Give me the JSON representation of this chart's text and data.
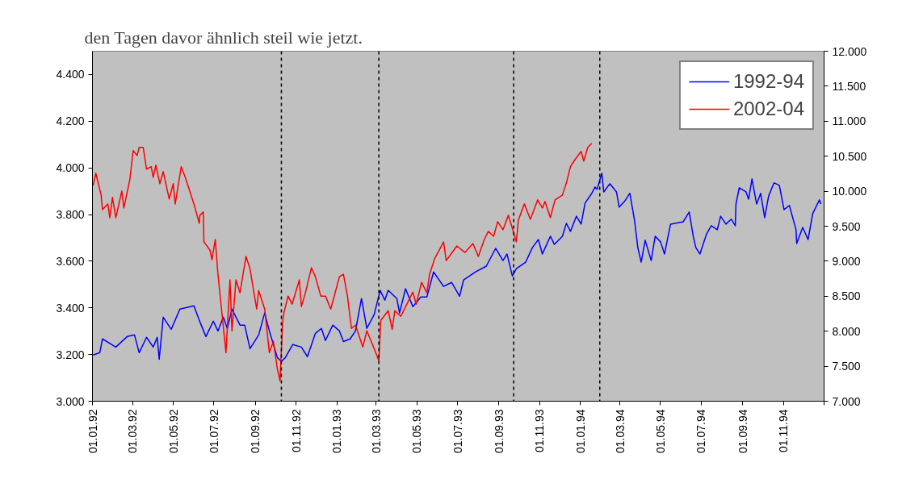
{
  "chart_data": {
    "type": "line",
    "annotations": [
      "den Tagen davor ähnlich steil wie jetzt."
    ],
    "xlim": [
      "1992-01-01",
      "1995-01-01"
    ],
    "xticks": [
      {
        "value": "1992-01-01",
        "label": "01.01.92"
      },
      {
        "value": "1992-03-01",
        "label": "01.03.92"
      },
      {
        "value": "1992-05-01",
        "label": "01.05.92"
      },
      {
        "value": "1992-07-01",
        "label": "01.07.92"
      },
      {
        "value": "1992-09-01",
        "label": "01.09.92"
      },
      {
        "value": "1992-11-01",
        "label": "01.11.92"
      },
      {
        "value": "1993-01-01",
        "label": "01.01.93"
      },
      {
        "value": "1993-03-01",
        "label": "01.03.93"
      },
      {
        "value": "1993-05-01",
        "label": "01.05.93"
      },
      {
        "value": "1993-07-01",
        "label": "01.07.93"
      },
      {
        "value": "1993-09-01",
        "label": "01.09.93"
      },
      {
        "value": "1993-11-01",
        "label": "01.11.93"
      },
      {
        "value": "1994-01-01",
        "label": "01.01.94"
      },
      {
        "value": "1994-03-01",
        "label": "01.03.94"
      },
      {
        "value": "1994-05-01",
        "label": "01.05.94"
      },
      {
        "value": "1994-07-01",
        "label": "01.07.94"
      },
      {
        "value": "1994-09-01",
        "label": "01.09.94"
      },
      {
        "value": "1994-11-01",
        "label": "01.11.94"
      },
      {
        "value": "1995-01-01",
        "label": null
      }
    ],
    "ylim": [
      3000,
      4500
    ],
    "yticks": [
      {
        "value": 3000,
        "label": "3.000"
      },
      {
        "value": 3200,
        "label": "3.200"
      },
      {
        "value": 3400,
        "label": "3.400"
      },
      {
        "value": 3600,
        "label": "3.600"
      },
      {
        "value": 3800,
        "label": "3.800"
      },
      {
        "value": 4000,
        "label": "4.000"
      },
      {
        "value": 4200,
        "label": "4.200"
      },
      {
        "value": 4400,
        "label": "4.400"
      }
    ],
    "y2lim": [
      7000,
      12000
    ],
    "y2ticks": [
      {
        "value": 7000,
        "label": "7.000"
      },
      {
        "value": 7500,
        "label": "7.500"
      },
      {
        "value": 8000,
        "label": "8.000"
      },
      {
        "value": 8500,
        "label": "8.500"
      },
      {
        "value": 9000,
        "label": "9.000"
      },
      {
        "value": 9500,
        "label": "9.500"
      },
      {
        "value": 10000,
        "label": "10.000"
      },
      {
        "value": 10500,
        "label": "10.500"
      },
      {
        "value": 11000,
        "label": "11.000"
      },
      {
        "value": 11500,
        "label": "11.500"
      },
      {
        "value": 12000,
        "label": "12.000"
      }
    ],
    "grid": false,
    "legend": "top right",
    "ref_lines": [
      {
        "axis": "x",
        "value": "1992-10-10",
        "label": null,
        "color": "#000000",
        "line_style": "dashed"
      },
      {
        "axis": "x",
        "value": "1993-03-05",
        "label": null,
        "color": "#000000",
        "line_style": "dashed"
      },
      {
        "axis": "x",
        "value": "1993-09-23",
        "label": null,
        "color": "#000000",
        "line_style": "dashed"
      },
      {
        "axis": "x",
        "value": "1994-01-30",
        "label": null,
        "color": "#000000",
        "line_style": "dashed"
      }
    ],
    "series": [
      {
        "name": "1992-94",
        "color": "#0000ff",
        "x": [
          "1992-01-02",
          "1992-01-12",
          "1992-01-16",
          "1992-02-05",
          "1992-02-22",
          "1992-03-04",
          "1992-03-11",
          "1992-03-22",
          "1992-04-01",
          "1992-04-07",
          "1992-04-10",
          "1992-04-16",
          "1992-04-28",
          "1992-05-11",
          "1992-06-01",
          "1992-06-09",
          "1992-06-19",
          "1992-06-30",
          "1992-07-07",
          "1992-07-15",
          "1992-07-21",
          "1992-07-28",
          "1992-08-09",
          "1992-08-16",
          "1992-08-24",
          "1992-09-06",
          "1992-09-15",
          "1992-09-22",
          "1992-10-04",
          "1992-10-10",
          "1992-10-16",
          "1992-10-27",
          "1992-11-09",
          "1992-11-18",
          "1992-11-30",
          "1992-12-09",
          "1992-12-15",
          "1992-12-26",
          "1993-01-05",
          "1993-01-11",
          "1993-01-21",
          "1993-01-29",
          "1993-02-07",
          "1993-02-15",
          "1993-02-26",
          "1993-03-07",
          "1993-03-14",
          "1993-03-19",
          "1993-04-01",
          "1993-04-05",
          "1993-04-14",
          "1993-04-25",
          "1993-05-07",
          "1993-05-16",
          "1993-05-26",
          "1993-06-10",
          "1993-06-22",
          "1993-07-04",
          "1993-07-10",
          "1993-07-28",
          "1993-08-13",
          "1993-08-27",
          "1993-09-07",
          "1993-09-13",
          "1993-09-21",
          "1993-09-27",
          "1993-10-11",
          "1993-10-21",
          "1993-10-30",
          "1993-11-05",
          "1993-11-17",
          "1993-11-23",
          "1993-12-05",
          "1993-12-11",
          "1993-12-17",
          "1993-12-26",
          "1994-01-02",
          "1994-01-08",
          "1994-01-18",
          "1994-01-23",
          "1994-01-26",
          "1994-02-02",
          "1994-02-05",
          "1994-02-14",
          "1994-02-24",
          "1994-02-28",
          "1994-03-08",
          "1994-03-16",
          "1994-03-23",
          "1994-03-28",
          "1994-04-02",
          "1994-04-08",
          "1994-04-17",
          "1994-04-23",
          "1994-05-01",
          "1994-05-07",
          "1994-05-16",
          "1994-06-04",
          "1994-06-13",
          "1994-06-19",
          "1994-06-23",
          "1994-06-29",
          "1994-07-09",
          "1994-07-16",
          "1994-07-25",
          "1994-07-30",
          "1994-08-07",
          "1994-08-15",
          "1994-08-21",
          "1994-08-22",
          "1994-08-27",
          "1994-09-06",
          "1994-09-10",
          "1994-09-15",
          "1994-09-22",
          "1994-09-28",
          "1994-10-04",
          "1994-10-10",
          "1994-10-18",
          "1994-10-26",
          "1994-11-02",
          "1994-11-10",
          "1994-11-20",
          "1994-11-21",
          "1994-11-30",
          "1994-12-08",
          "1994-12-15",
          "1994-12-25",
          "1994-12-27"
        ],
        "values": [
          3198,
          3208,
          3267,
          3232,
          3277,
          3284,
          3208,
          3274,
          3232,
          3274,
          3180,
          3360,
          3308,
          3395,
          3409,
          3347,
          3277,
          3343,
          3301,
          3360,
          3312,
          3395,
          3326,
          3326,
          3225,
          3284,
          3378,
          3301,
          3187,
          3170,
          3187,
          3243,
          3232,
          3191,
          3291,
          3312,
          3260,
          3326,
          3301,
          3256,
          3267,
          3301,
          3440,
          3312,
          3371,
          3475,
          3433,
          3475,
          3440,
          3378,
          3482,
          3405,
          3447,
          3447,
          3554,
          3492,
          3509,
          3450,
          3520,
          3554,
          3579,
          3655,
          3603,
          3631,
          3537,
          3568,
          3596,
          3658,
          3693,
          3631,
          3707,
          3672,
          3707,
          3762,
          3728,
          3793,
          3759,
          3849,
          3891,
          3918,
          3908,
          3977,
          3897,
          3932,
          3897,
          3832,
          3856,
          3891,
          3776,
          3658,
          3596,
          3690,
          3603,
          3707,
          3683,
          3631,
          3759,
          3769,
          3811,
          3707,
          3658,
          3631,
          3717,
          3752,
          3735,
          3793,
          3759,
          3780,
          3752,
          3845,
          3915,
          3897,
          3866,
          3953,
          3845,
          3891,
          3787,
          3880,
          3936,
          3925,
          3821,
          3839,
          3735,
          3676,
          3745,
          3693,
          3804,
          3863,
          3845
        ]
      },
      {
        "name": "2002-04",
        "color": "#ff0000",
        "axis": "y2",
        "x": [
          "1992-01-02",
          "1992-01-06",
          "1992-01-14",
          "1992-01-16",
          "1992-01-24",
          "1992-01-27",
          "1992-01-31",
          "1992-02-05",
          "1992-02-14",
          "1992-02-17",
          "1992-02-26",
          "1992-03-02",
          "1992-03-08",
          "1992-03-11",
          "1992-03-17",
          "1992-03-22",
          "1992-03-29",
          "1992-04-01",
          "1992-04-05",
          "1992-04-11",
          "1992-04-16",
          "1992-04-25",
          "1992-05-01",
          "1992-05-04",
          "1992-05-13",
          "1992-05-19",
          "1992-06-01",
          "1992-06-09",
          "1992-06-10",
          "1992-06-15",
          "1992-06-16",
          "1992-06-25",
          "1992-06-28",
          "1992-07-03",
          "1992-07-07",
          "1992-07-19",
          "1992-07-25",
          "1992-07-28",
          "1992-08-03",
          "1992-08-09",
          "1992-08-18",
          "1992-08-24",
          "1992-09-03",
          "1992-09-06",
          "1992-09-15",
          "1992-09-22",
          "1992-09-28",
          "1992-10-04",
          "1992-10-08",
          "1992-10-12",
          "1992-10-14",
          "1992-10-20",
          "1992-10-26",
          "1992-11-06",
          "1992-11-09",
          "1992-11-15",
          "1992-11-24",
          "1992-11-30",
          "1992-12-08",
          "1992-12-15",
          "1992-12-23",
          "1993-01-05",
          "1993-01-11",
          "1993-01-17",
          "1993-01-23",
          "1993-01-29",
          "1993-02-09",
          "1993-02-15",
          "1993-02-25",
          "1993-03-05",
          "1993-03-08",
          "1993-03-19",
          "1993-03-25",
          "1993-03-29",
          "1993-04-07",
          "1993-04-16",
          "1993-04-25",
          "1993-04-30",
          "1993-05-08",
          "1993-05-16",
          "1993-05-20",
          "1993-05-28",
          "1993-06-10",
          "1993-06-14",
          "1993-06-30",
          "1993-07-12",
          "1993-07-24",
          "1993-08-01",
          "1993-08-10",
          "1993-08-16",
          "1993-08-24",
          "1993-08-30",
          "1993-09-07",
          "1993-09-15",
          "1993-09-21",
          "1993-09-27",
          "1993-09-30",
          "1993-10-09",
          "1993-10-18",
          "1993-10-29",
          "1993-11-05",
          "1993-11-09",
          "1993-11-17",
          "1993-11-24",
          "1993-12-05",
          "1993-12-11",
          "1993-12-17",
          "1993-12-24",
          "1994-01-02",
          "1994-01-06",
          "1994-01-12",
          "1994-01-18"
        ],
        "values": [
          10084,
          10257,
          9945,
          9737,
          9818,
          9622,
          9911,
          9622,
          10003,
          9760,
          10165,
          10581,
          10511,
          10627,
          10627,
          10315,
          10350,
          10199,
          10373,
          10107,
          10280,
          9888,
          10107,
          9818,
          10350,
          10199,
          9818,
          9541,
          9657,
          9703,
          9275,
          9160,
          9021,
          9310,
          8814,
          7693,
          8733,
          8005,
          8733,
          8548,
          9067,
          8894,
          8317,
          8582,
          8317,
          7693,
          7855,
          7462,
          7289,
          8155,
          8271,
          8502,
          8386,
          8733,
          8352,
          8548,
          8906,
          8779,
          8502,
          8502,
          8317,
          8779,
          8814,
          8502,
          8040,
          8086,
          7774,
          8005,
          7774,
          7578,
          8155,
          8294,
          8028,
          8294,
          8213,
          8386,
          8559,
          8386,
          8698,
          8548,
          8814,
          9044,
          9275,
          9010,
          9218,
          9125,
          9252,
          9067,
          9310,
          9426,
          9356,
          9564,
          9449,
          9657,
          9472,
          9275,
          9587,
          9818,
          9599,
          9876,
          9760,
          9853,
          9622,
          9876,
          9945,
          10118,
          10350,
          10453,
          10569,
          10430,
          10627,
          10684
        ]
      }
    ]
  }
}
